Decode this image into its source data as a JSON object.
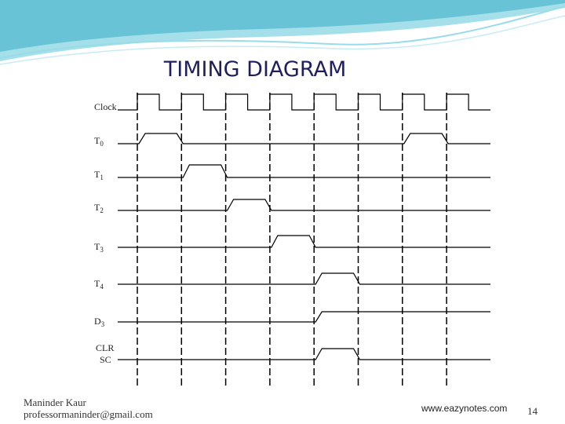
{
  "header": {
    "title": "TIMING DIAGRAM"
  },
  "signals": [
    {
      "label": "Clock"
    },
    {
      "label": "T",
      "sub": "0"
    },
    {
      "label": "T",
      "sub": "1"
    },
    {
      "label": "T",
      "sub": "2"
    },
    {
      "label": "T",
      "sub": "3"
    },
    {
      "label": "T",
      "sub": "4"
    },
    {
      "label": "D",
      "sub": "3"
    },
    {
      "label": "CLR",
      "label2": "SC"
    }
  ],
  "footer": {
    "author": "Maninder Kaur",
    "email": "professormaninder@gmail.com",
    "site": "www.eazynotes.com",
    "page": "14"
  }
}
